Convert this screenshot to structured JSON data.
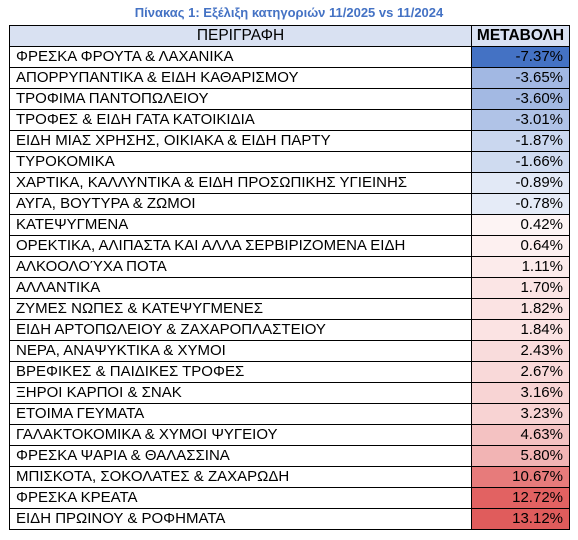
{
  "caption": "Πίνακας 1: Εξέλιξη κατηγοριών 11/2025 vs 11/2024",
  "table": {
    "headers": {
      "description": "ΠΕΡΙΓΡΑΦΗ",
      "change": "ΜΕΤΑΒΟΛΗ"
    },
    "rows": [
      {
        "description": "ΦΡΕΣΚΑ ΦΡΟΥΤΑ & ΛΑΧΑΝΙΚΑ",
        "change": "-7.37%",
        "color": "#4472c4"
      },
      {
        "description": "ΑΠΟΡΡΥΠΑΝΤΙΚΑ & ΕΙΔΗ ΚΑΘΑΡΙΣΜΟΥ",
        "change": "-3.65%",
        "color": "#a2b8e3"
      },
      {
        "description": "ΤΡΟΦΙΜΑ ΠΑΝΤΟΠΩΛΕΙΟΥ",
        "change": "-3.60%",
        "color": "#a3b9e3"
      },
      {
        "description": "ΤΡΟΦΕΣ & ΕΙΔΗ ΓΑΤΑ ΚΑΤΟΙΚΙΔΙΑ",
        "change": "-3.01%",
        "color": "#b0c3e7"
      },
      {
        "description": "ΕΙΔΗ ΜΙΑΣ ΧΡΗΣΗΣ, ΟΙΚΙΑΚΑ & ΕΙΔΗ ΠΑΡΤΥ",
        "change": "-1.87%",
        "color": "#cad7ef"
      },
      {
        "description": "ΤΥΡΟΚΟΜΙΚΑ",
        "change": "-1.66%",
        "color": "#cfdbf0"
      },
      {
        "description": "ΧΑΡΤΙΚΑ, ΚΑΛΛΥΝΤΙΚΑ & ΕΙΔΗ ΠΡΟΣΩΠΙΚΗΣ ΥΓΙΕΙΝΗΣ",
        "change": "-0.89%",
        "color": "#e2e9f6"
      },
      {
        "description": "ΑΥΓΑ, ΒΟΥΤΥΡΑ & ΖΩΜΟΙ",
        "change": "-0.78%",
        "color": "#e5ebf7"
      },
      {
        "description": "ΚΑΤΕΨΥΓΜΕΝΑ",
        "change": "0.42%",
        "color": "#fdf4f4"
      },
      {
        "description": "ΟΡΕΚΤΙΚΑ, ΑΛΙΠΑΣΤΑ ΚΑΙ ΑΛΛΑ ΣΕΡΒΙΡΙΖΟΜΕΝΑ ΕΙΔΗ",
        "change": "0.64%",
        "color": "#fdf0f0"
      },
      {
        "description": "ΑΛΚΟΟΛΟΎΧΑ ΠΟΤΑ",
        "change": "1.11%",
        "color": "#fcebeb"
      },
      {
        "description": "ΑΛΛΑΝΤΙΚΑ",
        "change": "1.70%",
        "color": "#fbe5e5"
      },
      {
        "description": "ΖΥΜΕΣ ΝΩΠΕΣ & ΚΑΤΕΨΥΓΜΕΝΕΣ",
        "change": "1.82%",
        "color": "#fbe3e3"
      },
      {
        "description": "ΕΙΔΗ ΑΡΤΟΠΩΛΕΙΟΥ & ΖΑΧΑΡΟΠΛΑΣΤΕΙΟΥ",
        "change": "1.84%",
        "color": "#fbe3e3"
      },
      {
        "description": "ΝΕΡΑ, ΑΝΑΨΥΚΤΙΚΑ & ΧΥΜΟΙ",
        "change": "2.43%",
        "color": "#f9dcdc"
      },
      {
        "description": "ΒΡΕΦΙΚΕΣ & ΠΑΙΔΙΚΕΣ ΤΡΟΦΕΣ",
        "change": "2.67%",
        "color": "#f9d9d9"
      },
      {
        "description": "ΞΗΡΟΙ ΚΑΡΠΟΙ & ΣΝΑΚ",
        "change": "3.16%",
        "color": "#f8d4d4"
      },
      {
        "description": "ΕΤΟΙΜΑ ΓΕΥΜΑΤΑ",
        "change": "3.23%",
        "color": "#f8d3d3"
      },
      {
        "description": "ΓΑΛΑΚΤΟΚΟΜΙΚΑ & ΧΥΜΟΙ ΨΥΓΕΙΟΥ",
        "change": "4.63%",
        "color": "#f4c2c2"
      },
      {
        "description": "ΦΡΕΣΚΑ ΨΑΡΙΑ & ΘΑΛΑΣΣΙΝΑ",
        "change": "5.80%",
        "color": "#f2b4b4"
      },
      {
        "description": "ΜΠΙΣΚΟΤΑ, ΣΟΚΟΛΑΤΕΣ & ΖΑΧΑΡΩΔΗ",
        "change": "10.67%",
        "color": "#e77b7b"
      },
      {
        "description": "ΦΡΕΣΚΑ ΚΡΕΑΤΑ",
        "change": "12.72%",
        "color": "#e26262"
      },
      {
        "description": "ΕΙΔΗ ΠΡΩΙΝΟΥ & ΡΟΦΗΜΑΤΑ",
        "change": "13.12%",
        "color": "#e05c5c"
      }
    ]
  }
}
